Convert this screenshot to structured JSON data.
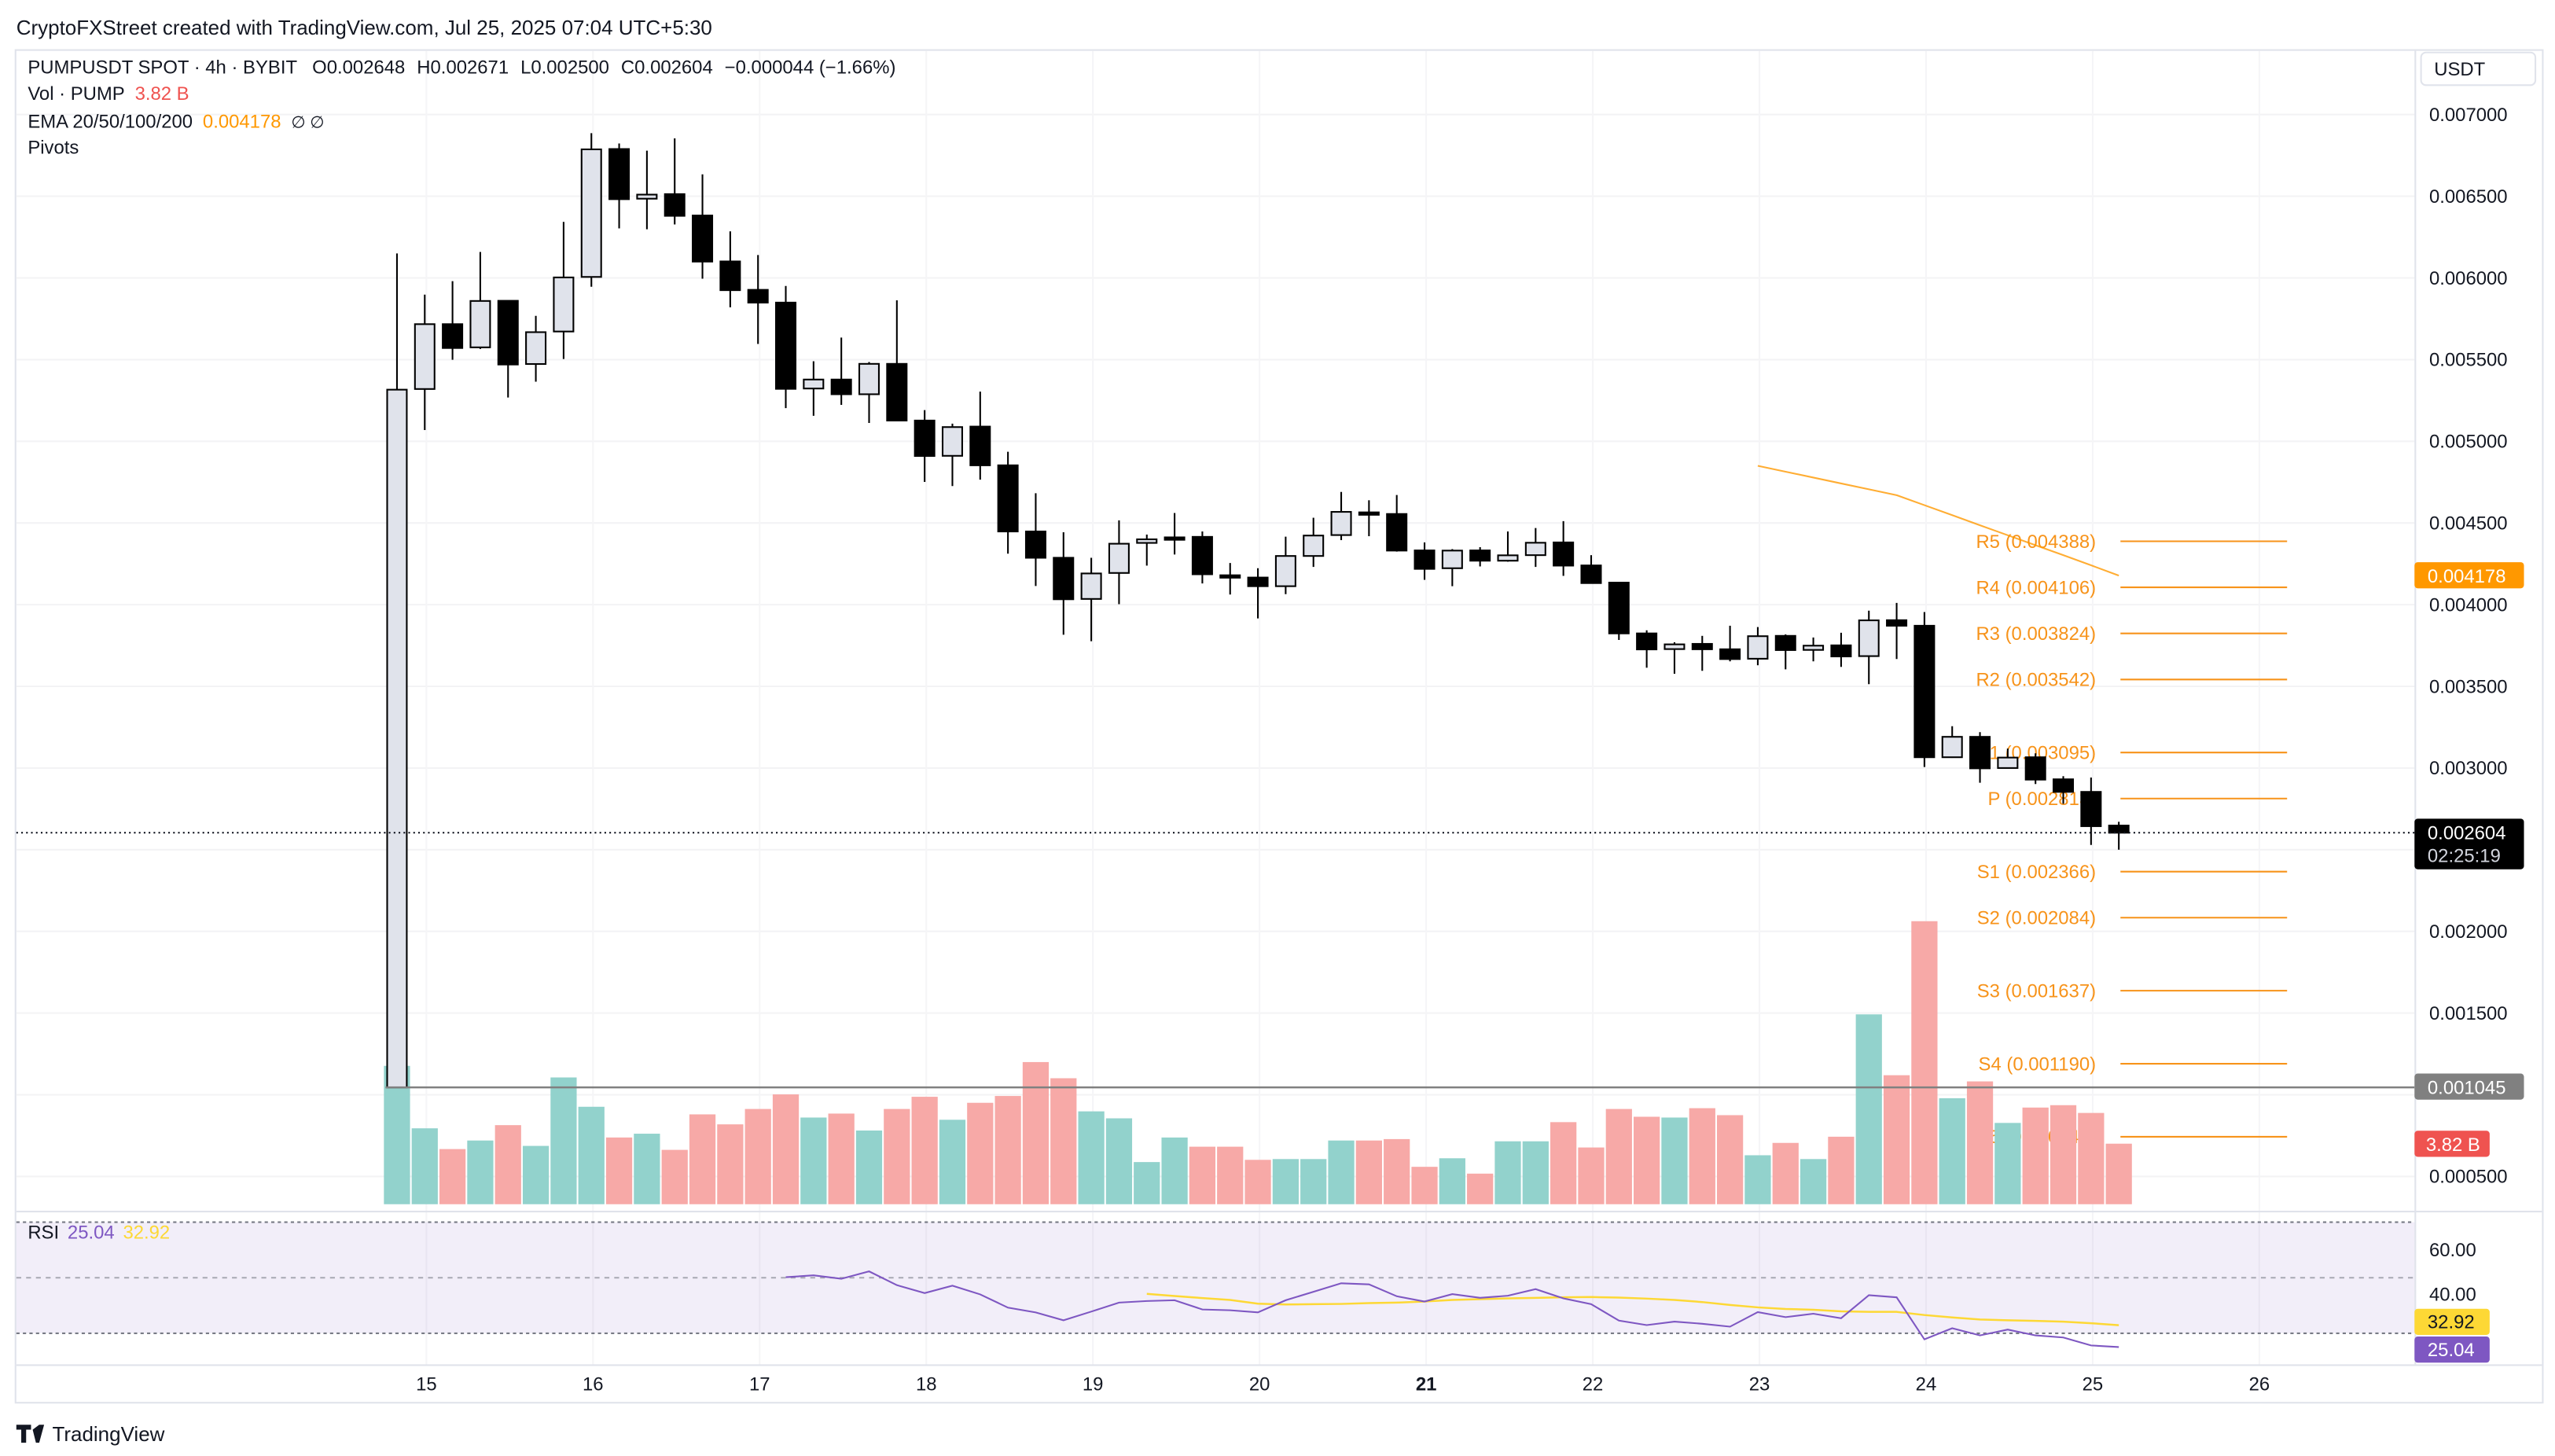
{
  "watermark": "CryptoFXStreet created with TradingView.com, Jul 25, 2025 07:04 UTC+5:30",
  "legend": {
    "symbol": "PUMPUSDT SPOT · 4h · BYBIT",
    "o_label": "O",
    "o": "0.002648",
    "h_label": "H",
    "h": "0.002671",
    "l_label": "L",
    "l": "0.002500",
    "c_label": "C",
    "c": "0.002604",
    "change": "−0.000044 (−1.66%)",
    "vol_label": "Vol · PUMP",
    "vol_value": "3.82 B",
    "ema_label": "EMA 20/50/100/200",
    "ema_value": "0.004178",
    "ema_na": "∅ ∅",
    "pivots_label": "Pivots"
  },
  "price_axis": {
    "currency": "USDT",
    "ticks": [
      "0.007000",
      "0.006500",
      "0.006000",
      "0.005500",
      "0.005000",
      "0.004500",
      "0.004000",
      "0.003500",
      "0.003000",
      "0.002000",
      "0.001500",
      "0.000500"
    ]
  },
  "badges": {
    "ema": "0.004178",
    "last_price": "0.002604",
    "countdown": "02:25:19",
    "hline_price": "0.001045",
    "volume": "3.82 B",
    "rsi_ma": "32.92",
    "rsi": "25.04"
  },
  "colors": {
    "up_body": "#e0e3eb",
    "down_body": "#000000",
    "vol_up": "#92d2cc",
    "vol_down": "#f7a9a7",
    "pivot": "#f7931a",
    "ema": "#ff9800",
    "rsi": "#7e57c2",
    "rsi_ma": "#fdd835",
    "vol_badge": "#ef5350",
    "hline": "#808080"
  },
  "rsi_pane": {
    "label": "RSI",
    "value": "25.04",
    "ma_value": "32.92",
    "ticks": [
      "60.00",
      "40.00"
    ],
    "bands": [
      70,
      50,
      30
    ]
  },
  "time_axis": [
    {
      "label": "15"
    },
    {
      "label": "16"
    },
    {
      "label": "17"
    },
    {
      "label": "18"
    },
    {
      "label": "19"
    },
    {
      "label": "20"
    },
    {
      "label": "21",
      "major": true
    },
    {
      "label": "22"
    },
    {
      "label": "23"
    },
    {
      "label": "24"
    },
    {
      "label": "25"
    },
    {
      "label": "26"
    }
  ],
  "footer": {
    "brand": "TradingView"
  },
  "chart_data": {
    "type": "candlestick",
    "symbol": "PUMPUSDT",
    "interval": "4h",
    "ylim": [
      0.0005,
      0.007
    ],
    "volume_unit": "B",
    "pivots": [
      {
        "name": "R5",
        "value": "0.004388"
      },
      {
        "name": "R4",
        "value": "0.004106"
      },
      {
        "name": "R3",
        "value": "0.003824"
      },
      {
        "name": "R2",
        "value": "0.003542"
      },
      {
        "name": "R1",
        "value": "0.003095"
      },
      {
        "name": "P",
        "value": "0.002813"
      },
      {
        "name": "S1",
        "value": "0.002366"
      },
      {
        "name": "S2",
        "value": "0.002084"
      },
      {
        "name": "S3",
        "value": "0.001637"
      },
      {
        "name": "S4",
        "value": "0.001190"
      },
      {
        "name": "S5",
        "value": "0.000743"
      }
    ],
    "hline": 0.001045,
    "candles": [
      {
        "t": "Jul 14 20:00",
        "o": 0.001045,
        "h": 0.00615,
        "l": 0.001045,
        "c": 0.005316,
        "v": 8.73,
        "vd": "up"
      },
      {
        "t": "Jul 15 00:00",
        "o": 0.00532,
        "h": 0.005898,
        "l": 0.005069,
        "c": 0.005717,
        "v": 4.79,
        "vd": "up"
      },
      {
        "t": "Jul 15 04:00",
        "o": 0.005717,
        "h": 0.00598,
        "l": 0.005499,
        "c": 0.005571,
        "v": 3.48,
        "vd": "down"
      },
      {
        "t": "Jul 15 08:00",
        "o": 0.005575,
        "h": 0.006159,
        "l": 0.005565,
        "c": 0.005859,
        "v": 4.02,
        "vd": "up"
      },
      {
        "t": "Jul 15 12:00",
        "o": 0.00586,
        "h": 0.00586,
        "l": 0.005268,
        "c": 0.00547,
        "v": 4.99,
        "vd": "down"
      },
      {
        "t": "Jul 15 16:00",
        "o": 0.005473,
        "h": 0.005768,
        "l": 0.005365,
        "c": 0.005668,
        "v": 3.68,
        "vd": "up"
      },
      {
        "t": "Jul 15 20:00",
        "o": 0.005672,
        "h": 0.006343,
        "l": 0.005504,
        "c": 0.006003,
        "v": 8.0,
        "vd": "up"
      },
      {
        "t": "Jul 16 00:00",
        "o": 0.006006,
        "h": 0.006886,
        "l": 0.005946,
        "c": 0.006787,
        "v": 6.15,
        "vd": "up"
      },
      {
        "t": "Jul 16 04:00",
        "o": 0.006789,
        "h": 0.006823,
        "l": 0.006303,
        "c": 0.006482,
        "v": 4.21,
        "vd": "down"
      },
      {
        "t": "Jul 16 08:00",
        "o": 0.006485,
        "h": 0.006779,
        "l": 0.006298,
        "c": 0.00651,
        "v": 4.45,
        "vd": "up"
      },
      {
        "t": "Jul 16 12:00",
        "o": 0.006513,
        "h": 0.006854,
        "l": 0.006327,
        "c": 0.00638,
        "v": 3.43,
        "vd": "down"
      },
      {
        "t": "Jul 16 16:00",
        "o": 0.006382,
        "h": 0.006634,
        "l": 0.005995,
        "c": 0.0061,
        "v": 5.67,
        "vd": "down"
      },
      {
        "t": "Jul 16 20:00",
        "o": 0.006101,
        "h": 0.006285,
        "l": 0.00582,
        "c": 0.005925,
        "v": 5.04,
        "vd": "down"
      },
      {
        "t": "Jul 17 00:00",
        "o": 0.005927,
        "h": 0.00614,
        "l": 0.005596,
        "c": 0.005849,
        "v": 6.01,
        "vd": "down"
      },
      {
        "t": "Jul 17 04:00",
        "o": 0.005849,
        "h": 0.005951,
        "l": 0.005203,
        "c": 0.005321,
        "v": 6.93,
        "vd": "down",
        "rsi": 50.19
      },
      {
        "t": "Jul 17 08:00",
        "o": 0.005323,
        "h": 0.00549,
        "l": 0.005156,
        "c": 0.005378,
        "v": 5.47,
        "vd": "up",
        "rsi": 50.86
      },
      {
        "t": "Jul 17 12:00",
        "o": 0.005378,
        "h": 0.005635,
        "l": 0.005223,
        "c": 0.005288,
        "v": 5.72,
        "vd": "down",
        "rsi": 49.62
      },
      {
        "t": "Jul 17 16:00",
        "o": 0.005288,
        "h": 0.005485,
        "l": 0.005112,
        "c": 0.005474,
        "v": 4.65,
        "vd": "up",
        "rsi": 52.29
      },
      {
        "t": "Jul 17 20:00",
        "o": 0.005474,
        "h": 0.005863,
        "l": 0.005127,
        "c": 0.005127,
        "v": 6.01,
        "vd": "down",
        "rsi": 47.33
      },
      {
        "t": "Jul 18 00:00",
        "o": 0.005127,
        "h": 0.005191,
        "l": 0.004751,
        "c": 0.00491,
        "v": 6.78,
        "vd": "down",
        "rsi": 44.48
      },
      {
        "t": "Jul 18 04:00",
        "o": 0.004911,
        "h": 0.005108,
        "l": 0.004726,
        "c": 0.005087,
        "v": 5.33,
        "vd": "up",
        "rsi": 47.14
      },
      {
        "t": "Jul 18 08:00",
        "o": 0.00509,
        "h": 0.005304,
        "l": 0.004765,
        "c": 0.004853,
        "v": 6.4,
        "vd": "down",
        "rsi": 44.0
      },
      {
        "t": "Jul 18 12:00",
        "o": 0.004853,
        "h": 0.004936,
        "l": 0.004312,
        "c": 0.004448,
        "v": 6.83,
        "vd": "down",
        "rsi": 39.24
      },
      {
        "t": "Jul 18 16:00",
        "o": 0.004448,
        "h": 0.004682,
        "l": 0.004114,
        "c": 0.004287,
        "v": 8.97,
        "vd": "down",
        "rsi": 37.52
      },
      {
        "t": "Jul 18 20:00",
        "o": 0.004287,
        "h": 0.004443,
        "l": 0.003816,
        "c": 0.004033,
        "v": 7.95,
        "vd": "down",
        "rsi": 34.67
      },
      {
        "t": "Jul 19 00:00",
        "o": 0.004035,
        "h": 0.004287,
        "l": 0.003776,
        "c": 0.004191,
        "v": 5.86,
        "vd": "up",
        "rsi": 37.81
      },
      {
        "t": "Jul 19 04:00",
        "o": 0.004194,
        "h": 0.004516,
        "l": 0.004003,
        "c": 0.004373,
        "v": 5.42,
        "vd": "up",
        "rsi": 41.05
      },
      {
        "t": "Jul 19 08:00",
        "o": 0.004378,
        "h": 0.004429,
        "l": 0.004239,
        "c": 0.0044,
        "v": 2.66,
        "vd": "up",
        "rsi": 41.62,
        "rsi_ma": 44.19
      },
      {
        "t": "Jul 19 12:00",
        "o": 0.004412,
        "h": 0.004561,
        "l": 0.004307,
        "c": 0.0044,
        "v": 4.21,
        "vd": "up",
        "rsi": 41.9,
        "rsi_ma": 43.43
      },
      {
        "t": "Jul 19 16:00",
        "o": 0.004415,
        "h": 0.004448,
        "l": 0.00413,
        "c": 0.004186,
        "v": 3.63,
        "vd": "down",
        "rsi": 38.57,
        "rsi_ma": 42.67
      },
      {
        "t": "Jul 19 20:00",
        "o": 0.00418,
        "h": 0.004255,
        "l": 0.004062,
        "c": 0.004172,
        "v": 3.63,
        "vd": "down",
        "rsi": 38.29,
        "rsi_ma": 42.0
      },
      {
        "t": "Jul 20 00:00",
        "o": 0.004166,
        "h": 0.004223,
        "l": 0.003916,
        "c": 0.004113,
        "v": 2.8,
        "vd": "down",
        "rsi": 37.52,
        "rsi_ma": 40.67
      },
      {
        "t": "Jul 20 04:00",
        "o": 0.004113,
        "h": 0.004416,
        "l": 0.004064,
        "c": 0.004298,
        "v": 2.85,
        "vd": "up",
        "rsi": 41.9,
        "rsi_ma": 40.38
      },
      {
        "t": "Jul 20 08:00",
        "o": 0.004298,
        "h": 0.004532,
        "l": 0.004231,
        "c": 0.004423,
        "v": 2.85,
        "vd": "up",
        "rsi": 44.95,
        "rsi_ma": 40.48
      },
      {
        "t": "Jul 20 12:00",
        "o": 0.004426,
        "h": 0.00469,
        "l": 0.004395,
        "c": 0.004568,
        "v": 4.02,
        "vd": "up",
        "rsi": 48.0,
        "rsi_ma": 40.57
      },
      {
        "t": "Jul 20 16:00",
        "o": 0.004565,
        "h": 0.004639,
        "l": 0.004419,
        "c": 0.004557,
        "v": 4.02,
        "vd": "down",
        "rsi": 47.62,
        "rsi_ma": 40.86
      },
      {
        "t": "Jul 20 20:00",
        "o": 0.004555,
        "h": 0.004671,
        "l": 0.004325,
        "c": 0.004331,
        "v": 4.11,
        "vd": "down",
        "rsi": 43.33,
        "rsi_ma": 41.05
      },
      {
        "t": "Jul 21 00:00",
        "o": 0.004332,
        "h": 0.004381,
        "l": 0.004152,
        "c": 0.004219,
        "v": 2.36,
        "vd": "down",
        "rsi": 41.43,
        "rsi_ma": 41.43
      },
      {
        "t": "Jul 21 04:00",
        "o": 0.004223,
        "h": 0.00434,
        "l": 0.004113,
        "c": 0.004331,
        "v": 2.9,
        "vd": "up",
        "rsi": 44.1,
        "rsi_ma": 42.0
      },
      {
        "t": "Jul 21 08:00",
        "o": 0.004332,
        "h": 0.004352,
        "l": 0.004234,
        "c": 0.004269,
        "v": 1.93,
        "vd": "down",
        "rsi": 42.76,
        "rsi_ma": 42.29
      },
      {
        "t": "Jul 21 12:00",
        "o": 0.004269,
        "h": 0.004448,
        "l": 0.004263,
        "c": 0.004302,
        "v": 3.97,
        "vd": "up",
        "rsi": 43.52,
        "rsi_ma": 42.57
      },
      {
        "t": "Jul 21 16:00",
        "o": 0.004303,
        "h": 0.004469,
        "l": 0.004231,
        "c": 0.004379,
        "v": 3.97,
        "vd": "up",
        "rsi": 45.9,
        "rsi_ma": 42.76
      },
      {
        "t": "Jul 21 20:00",
        "o": 0.004381,
        "h": 0.004511,
        "l": 0.004176,
        "c": 0.004239,
        "v": 5.18,
        "vd": "down",
        "rsi": 42.57,
        "rsi_ma": 42.95
      },
      {
        "t": "Jul 22 00:00",
        "o": 0.00424,
        "h": 0.004303,
        "l": 0.004128,
        "c": 0.004132,
        "v": 3.58,
        "vd": "down",
        "rsi": 40.48,
        "rsi_ma": 43.05
      },
      {
        "t": "Jul 22 04:00",
        "o": 0.004135,
        "h": 0.004135,
        "l": 0.003784,
        "c": 0.003824,
        "v": 6.01,
        "vd": "down",
        "rsi": 34.57,
        "rsi_ma": 42.86
      },
      {
        "t": "Jul 22 08:00",
        "o": 0.003824,
        "h": 0.003843,
        "l": 0.003614,
        "c": 0.003726,
        "v": 5.52,
        "vd": "down",
        "rsi": 32.95,
        "rsi_ma": 42.48
      },
      {
        "t": "Jul 22 12:00",
        "o": 0.003728,
        "h": 0.00377,
        "l": 0.003577,
        "c": 0.003757,
        "v": 5.47,
        "vd": "up",
        "rsi": 34.19,
        "rsi_ma": 42.0
      },
      {
        "t": "Jul 22 16:00",
        "o": 0.00376,
        "h": 0.003809,
        "l": 0.003595,
        "c": 0.003727,
        "v": 6.06,
        "vd": "down",
        "rsi": 33.43,
        "rsi_ma": 41.24
      },
      {
        "t": "Jul 22 20:00",
        "o": 0.003727,
        "h": 0.003871,
        "l": 0.003653,
        "c": 0.003667,
        "v": 5.62,
        "vd": "down",
        "rsi": 32.38,
        "rsi_ma": 40.19
      },
      {
        "t": "Jul 23 00:00",
        "o": 0.003669,
        "h": 0.003863,
        "l": 0.003629,
        "c": 0.003807,
        "v": 3.09,
        "vd": "up",
        "rsi": 37.62,
        "rsi_ma": 39.33,
        "ema": 0.00485
      },
      {
        "t": "Jul 23 04:00",
        "o": 0.003809,
        "h": 0.003818,
        "l": 0.003604,
        "c": 0.003722,
        "v": 3.87,
        "vd": "down",
        "rsi": 35.81,
        "rsi_ma": 38.76,
        "ema": 0.004814
      },
      {
        "t": "Jul 23 08:00",
        "o": 0.003723,
        "h": 0.003799,
        "l": 0.003653,
        "c": 0.003749,
        "v": 2.85,
        "vd": "up",
        "rsi": 37.05,
        "rsi_ma": 38.48,
        "ema": 0.004778
      },
      {
        "t": "Jul 23 12:00",
        "o": 0.003751,
        "h": 0.003828,
        "l": 0.003619,
        "c": 0.003683,
        "v": 4.26,
        "vd": "down",
        "rsi": 35.43,
        "rsi_ma": 37.9,
        "ema": 0.004742
      },
      {
        "t": "Jul 23 16:00",
        "o": 0.003685,
        "h": 0.003963,
        "l": 0.003513,
        "c": 0.003904,
        "v": 11.98,
        "vd": "up",
        "rsi": 43.71,
        "rsi_ma": 37.71,
        "ema": 0.004706
      },
      {
        "t": "Jul 23 20:00",
        "o": 0.003905,
        "h": 0.004011,
        "l": 0.003667,
        "c": 0.003871,
        "v": 8.14,
        "vd": "down",
        "rsi": 42.95,
        "rsi_ma": 37.71,
        "ema": 0.00467
      },
      {
        "t": "Jul 24 00:00",
        "o": 0.003871,
        "h": 0.003955,
        "l": 0.003006,
        "c": 0.003066,
        "v": 17.86,
        "vd": "down",
        "rsi": 27.81,
        "rsi_ma": 36.57,
        "ema": 0.004609
      },
      {
        "t": "Jul 24 04:00",
        "o": 0.003066,
        "h": 0.003256,
        "l": 0.003062,
        "c": 0.003191,
        "v": 6.69,
        "vd": "up",
        "rsi": 31.81,
        "rsi_ma": 35.71,
        "ema": 0.004548
      },
      {
        "t": "Jul 24 08:00",
        "o": 0.003191,
        "h": 0.00322,
        "l": 0.00291,
        "c": 0.002998,
        "v": 7.75,
        "vd": "down",
        "rsi": 29.24,
        "rsi_ma": 34.95,
        "ema": 0.004486
      },
      {
        "t": "Jul 24 12:00",
        "o": 0.003,
        "h": 0.003119,
        "l": 0.002998,
        "c": 0.003064,
        "v": 5.13,
        "vd": "up",
        "rsi": 31.33,
        "rsi_ma": 34.67,
        "ema": 0.004425
      },
      {
        "t": "Jul 24 16:00",
        "o": 0.003066,
        "h": 0.00309,
        "l": 0.002902,
        "c": 0.002929,
        "v": 6.1,
        "vd": "down",
        "rsi": 29.24,
        "rsi_ma": 34.48,
        "ema": 0.004364
      },
      {
        "t": "Jul 24 20:00",
        "o": 0.002931,
        "h": 0.00295,
        "l": 0.002781,
        "c": 0.002854,
        "v": 6.25,
        "vd": "down",
        "rsi": 28.48,
        "rsi_ma": 34.19,
        "ema": 0.004303
      },
      {
        "t": "Jul 25 00:00",
        "o": 0.002854,
        "h": 0.002942,
        "l": 0.002529,
        "c": 0.002644,
        "v": 5.76,
        "vd": "down",
        "rsi": 25.62,
        "rsi_ma": 33.62,
        "ema": 0.004241
      },
      {
        "t": "Jul 25 04:00",
        "o": 0.002648,
        "h": 0.002671,
        "l": 0.0025,
        "c": 0.002604,
        "v": 3.82,
        "vd": "down",
        "rsi": 25.04,
        "rsi_ma": 32.92,
        "ema": 0.004178
      }
    ]
  }
}
